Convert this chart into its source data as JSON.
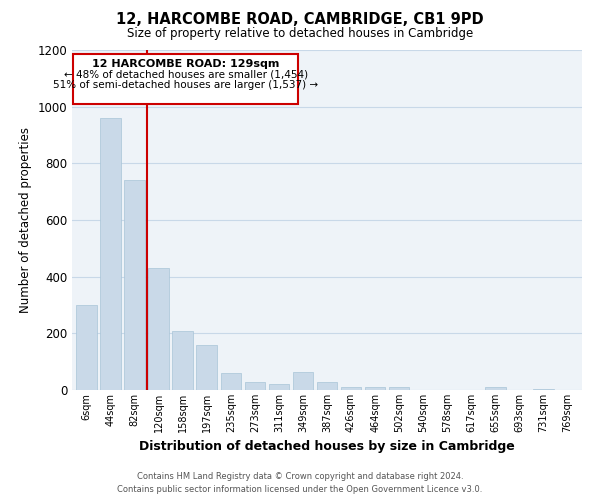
{
  "title1": "12, HARCOMBE ROAD, CAMBRIDGE, CB1 9PD",
  "title2": "Size of property relative to detached houses in Cambridge",
  "xlabel": "Distribution of detached houses by size in Cambridge",
  "ylabel": "Number of detached properties",
  "categories": [
    "6sqm",
    "44sqm",
    "82sqm",
    "120sqm",
    "158sqm",
    "197sqm",
    "235sqm",
    "273sqm",
    "311sqm",
    "349sqm",
    "387sqm",
    "426sqm",
    "464sqm",
    "502sqm",
    "540sqm",
    "578sqm",
    "617sqm",
    "655sqm",
    "693sqm",
    "731sqm",
    "769sqm"
  ],
  "values": [
    300,
    960,
    740,
    430,
    210,
    160,
    60,
    30,
    20,
    65,
    30,
    12,
    10,
    10,
    0,
    0,
    0,
    10,
    0,
    5,
    0
  ],
  "bar_color": "#c9d9e8",
  "bar_edge_color": "#a8c4d8",
  "red_line_index": 2.5,
  "annotation_title": "12 HARCOMBE ROAD: 129sqm",
  "annotation_line1": "← 48% of detached houses are smaller (1,454)",
  "annotation_line2": "51% of semi-detached houses are larger (1,537) →",
  "red_line_color": "#cc0000",
  "annotation_box_color": "#ffffff",
  "annotation_border_color": "#cc0000",
  "footer1": "Contains HM Land Registry data © Crown copyright and database right 2024.",
  "footer2": "Contains public sector information licensed under the Open Government Licence v3.0.",
  "ylim": [
    0,
    1200
  ],
  "yticks": [
    0,
    200,
    400,
    600,
    800,
    1000,
    1200
  ],
  "background_color": "#eef3f8",
  "grid_color": "#c8d8e8"
}
